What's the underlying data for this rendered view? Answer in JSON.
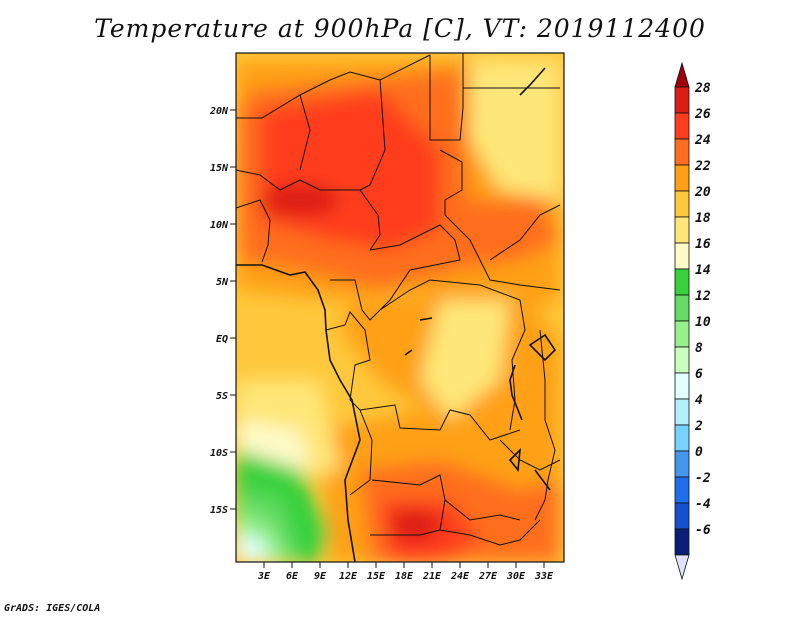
{
  "title": "Temperature at 900hPa [C], VT: 2019112400",
  "credit": "GrADS: IGES/COLA",
  "map": {
    "lat_ticks": [
      "20N",
      "15N",
      "10N",
      "5N",
      "EQ",
      "5S",
      "10S",
      "15S"
    ],
    "lon_ticks": [
      "3E",
      "6E",
      "9E",
      "12E",
      "15E",
      "18E",
      "21E",
      "24E",
      "27E",
      "30E",
      "33E"
    ]
  },
  "colorbar": {
    "labels": [
      "28",
      "26",
      "24",
      "22",
      "20",
      "18",
      "16",
      "14",
      "12",
      "10",
      "8",
      "6",
      "4",
      "2",
      "0",
      "-2",
      "-4",
      "-6"
    ],
    "colors": [
      "#a0000a",
      "#dc1e14",
      "#ff3c1e",
      "#ff6e1e",
      "#ffa014",
      "#ffc83c",
      "#ffe678",
      "#fffac8",
      "#37d23c",
      "#64dc64",
      "#96f08c",
      "#c8ffbe",
      "#e1ffff",
      "#b4f0fa",
      "#78d2ff",
      "#4696f0",
      "#1e6eeb",
      "#1450d2",
      "#0a1e78",
      "#e0e0ff"
    ]
  }
}
